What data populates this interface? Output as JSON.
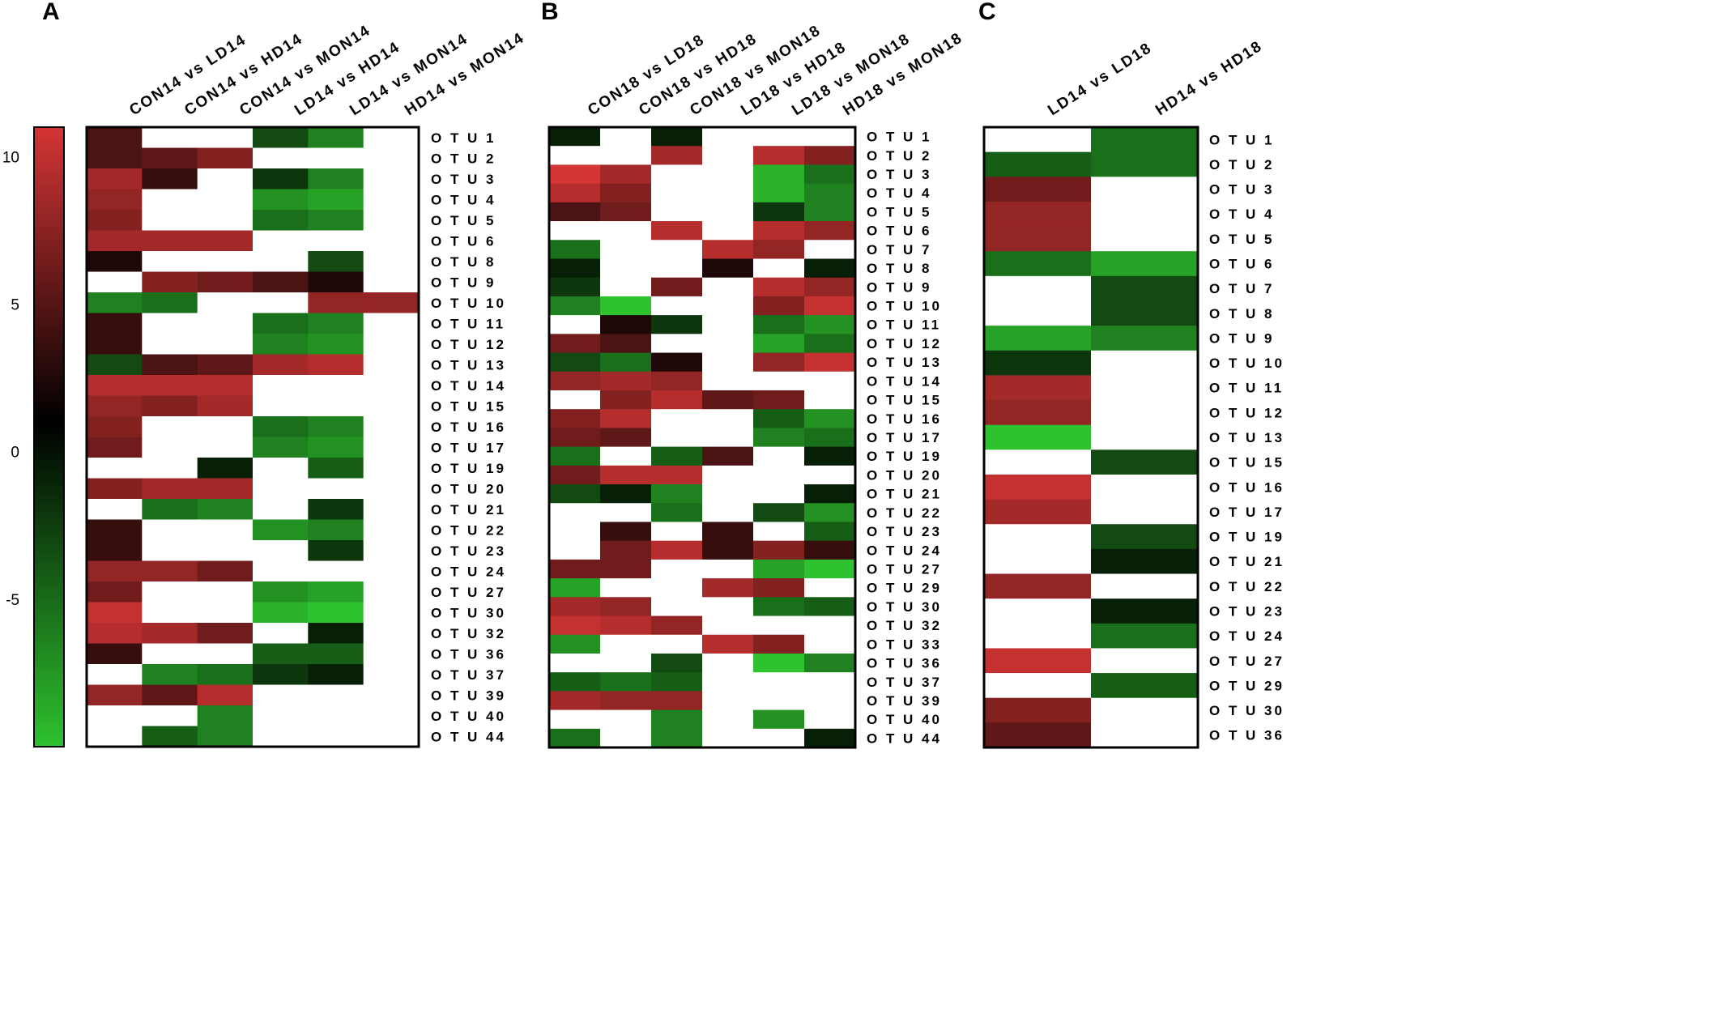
{
  "chart_data": {
    "type": "heatmap",
    "colorscale": {
      "min": -10,
      "max": 11,
      "ticks": [
        10,
        5,
        0,
        -5
      ],
      "low_color": "#2ec22e",
      "mid_color": "#000000",
      "high_color": "#d43535"
    },
    "panels": [
      {
        "letter": "A",
        "columns": [
          "CON14 vs LD14",
          "CON14 vs HD14",
          "CON14 vs MON14",
          "LD14 vs HD14",
          "LD14 vs MON14",
          "HD14 vs MON14"
        ],
        "rows": [
          "O T U 1",
          "O T U 2",
          "O T U 3",
          "O T U 4",
          "O T U 5",
          "O T U 6",
          "O T U 8",
          "O T U 9",
          "O T U 10",
          "O T U 11",
          "O T U 12",
          "O T U 13",
          "O T U 14",
          "O T U 15",
          "O T U 16",
          "O T U 17",
          "O T U 19",
          "O T U 20",
          "O T U 21",
          "O T U 22",
          "O T U 23",
          "O T U 24",
          "O T U 27",
          "O T U 30",
          "O T U 32",
          "O T U 36",
          "O T U 37",
          "O T U 39",
          "O T U 40",
          "O T U 44"
        ],
        "values": [
          [
            3,
            null,
            null,
            -3,
            -6,
            null
          ],
          [
            3,
            4,
            6,
            null,
            null,
            null
          ],
          [
            8,
            2,
            null,
            -2,
            -6,
            null
          ],
          [
            7,
            null,
            null,
            -7,
            -8,
            null
          ],
          [
            6,
            null,
            null,
            -5,
            -6,
            null
          ],
          [
            8,
            8,
            8,
            null,
            null,
            null
          ],
          [
            1,
            null,
            null,
            null,
            -3,
            null
          ],
          [
            null,
            6,
            5,
            3,
            1,
            null
          ],
          [
            -6,
            -5,
            null,
            null,
            7,
            7
          ],
          [
            2,
            null,
            null,
            -5,
            -6,
            null
          ],
          [
            2,
            null,
            null,
            -6,
            -7,
            null
          ],
          [
            -3,
            3,
            4,
            8,
            9,
            null
          ],
          [
            9,
            9,
            9,
            null,
            null,
            null
          ],
          [
            7,
            6,
            8,
            null,
            null,
            null
          ],
          [
            6,
            null,
            null,
            -5,
            -6,
            null
          ],
          [
            5,
            null,
            null,
            -6,
            -7,
            null
          ],
          [
            null,
            null,
            -1,
            null,
            -4,
            null
          ],
          [
            6,
            8,
            8,
            null,
            null,
            null
          ],
          [
            null,
            -5,
            -6,
            null,
            -2,
            null
          ],
          [
            2,
            null,
            null,
            -7,
            -6,
            null
          ],
          [
            2,
            null,
            null,
            null,
            -2,
            null
          ],
          [
            7,
            7,
            5,
            null,
            null,
            null
          ],
          [
            5,
            null,
            null,
            -7,
            -8,
            null
          ],
          [
            10,
            null,
            null,
            -9,
            -10,
            null
          ],
          [
            9,
            8,
            5,
            null,
            -1,
            null
          ],
          [
            2,
            null,
            null,
            -4,
            -4,
            null
          ],
          [
            null,
            -6,
            -5,
            -2,
            -1,
            null
          ],
          [
            7,
            4,
            9,
            null,
            null,
            null
          ],
          [
            null,
            null,
            -6,
            null,
            null,
            null
          ],
          [
            null,
            -4,
            -6,
            null,
            null,
            null
          ]
        ]
      },
      {
        "letter": "B",
        "columns": [
          "CON18 vs LD18",
          "CON18 vs HD18",
          "CON18 vs MON18",
          "LD18 vs HD18",
          "LD18 vs MON18",
          "HD18 vs MON18"
        ],
        "rows": [
          "O T U 1",
          "O T U 2",
          "O T U 3",
          "O T U 4",
          "O T U 5",
          "O T U 6",
          "O T U 7",
          "O T U 8",
          "O T U 9",
          "O T U 10",
          "O T U 11",
          "O T U 12",
          "O T U 13",
          "O T U 14",
          "O T U 15",
          "O T U 16",
          "O T U 17",
          "O T U 19",
          "O T U 20",
          "O T U 21",
          "O T U 22",
          "O T U 23",
          "O T U 24",
          "O T U 27",
          "O T U 29",
          "O T U 30",
          "O T U 32",
          "O T U 33",
          "O T U 36",
          "O T U 37",
          "O T U 39",
          "O T U 40",
          "O T U 44"
        ],
        "values": [
          [
            -1,
            null,
            -1,
            null,
            null,
            null
          ],
          [
            null,
            null,
            8,
            null,
            9,
            6
          ],
          [
            11,
            8,
            null,
            null,
            -9,
            -5
          ],
          [
            9,
            6,
            null,
            null,
            -9,
            -6
          ],
          [
            3,
            5,
            null,
            null,
            -2,
            -6
          ],
          [
            null,
            null,
            9,
            null,
            9,
            7
          ],
          [
            -5,
            null,
            null,
            9,
            7,
            null
          ],
          [
            -1,
            null,
            null,
            1,
            null,
            -1
          ],
          [
            -2,
            null,
            5,
            null,
            9,
            7
          ],
          [
            -6,
            -10,
            null,
            null,
            6,
            10
          ],
          [
            null,
            1,
            -2,
            null,
            -5,
            -7
          ],
          [
            5,
            3,
            null,
            null,
            -8,
            -5
          ],
          [
            -3,
            -5,
            1,
            null,
            7,
            10
          ],
          [
            7,
            8,
            7,
            null,
            null,
            null
          ],
          [
            null,
            6,
            9,
            4,
            5,
            null
          ],
          [
            6,
            9,
            null,
            null,
            -4,
            -7
          ],
          [
            5,
            4,
            null,
            null,
            -6,
            -5
          ],
          [
            -5,
            null,
            -4,
            3,
            null,
            -1
          ],
          [
            5,
            9,
            9,
            null,
            null,
            null
          ],
          [
            -3,
            -1,
            -6,
            null,
            null,
            -1
          ],
          [
            null,
            null,
            -5,
            null,
            -3,
            -7
          ],
          [
            null,
            2,
            null,
            2,
            null,
            -4
          ],
          [
            null,
            5,
            9,
            2,
            6,
            2
          ],
          [
            5,
            5,
            null,
            null,
            -8,
            -10
          ],
          [
            -8,
            null,
            null,
            8,
            6,
            null
          ],
          [
            8,
            7,
            null,
            null,
            -5,
            -4
          ],
          [
            10,
            9,
            7,
            null,
            null,
            null
          ],
          [
            -7,
            null,
            null,
            9,
            6,
            null
          ],
          [
            null,
            null,
            -3,
            null,
            -10,
            -6
          ],
          [
            -4,
            -5,
            -4,
            null,
            null,
            null
          ],
          [
            8,
            7,
            7,
            null,
            null,
            null
          ],
          [
            null,
            null,
            -6,
            null,
            -7,
            null
          ],
          [
            -5,
            null,
            -6,
            null,
            null,
            -1
          ]
        ]
      },
      {
        "letter": "C",
        "columns": [
          "LD14 vs LD18",
          "HD14 vs HD18"
        ],
        "rows": [
          "O T U 1",
          "O T U 2",
          "O T U 3",
          "O T U 4",
          "O T U 5",
          "O T U 6",
          "O T U 7",
          "O T U 8",
          "O T U 9",
          "O T U 10",
          "O T U 11",
          "O T U 12",
          "O T U 13",
          "O T U 15",
          "O T U 16",
          "O T U 17",
          "O T U 19",
          "O T U 21",
          "O T U 22",
          "O T U 23",
          "O T U 24",
          "O T U 27",
          "O T U 29",
          "O T U 30",
          "O T U 36"
        ],
        "values": [
          [
            null,
            -5
          ],
          [
            -4,
            -5
          ],
          [
            5,
            null
          ],
          [
            7,
            null
          ],
          [
            7,
            null
          ],
          [
            -5,
            -8
          ],
          [
            null,
            -3
          ],
          [
            null,
            -3
          ],
          [
            -8,
            -6
          ],
          [
            -2,
            null
          ],
          [
            8,
            null
          ],
          [
            7,
            null
          ],
          [
            -10,
            null
          ],
          [
            null,
            -3
          ],
          [
            10,
            null
          ],
          [
            8,
            null
          ],
          [
            null,
            -3
          ],
          [
            null,
            -1
          ],
          [
            7,
            null
          ],
          [
            null,
            -1
          ],
          [
            null,
            -5
          ],
          [
            10,
            null
          ],
          [
            null,
            -4
          ],
          [
            6,
            null
          ],
          [
            4,
            null
          ]
        ]
      }
    ]
  }
}
